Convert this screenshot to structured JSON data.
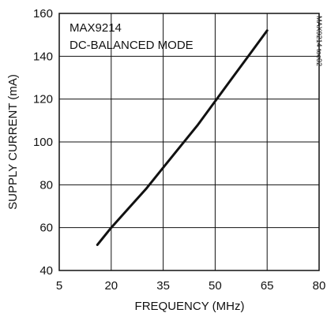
{
  "chart_data": {
    "type": "line",
    "title": "",
    "annotations": [
      "MAX9214",
      "DC-BALANCED MODE"
    ],
    "side_code": "MAX9214 toc02",
    "xlabel": "FREQUENCY (MHz)",
    "ylabel": "SUPPLY CURRENT (mA)",
    "xlim": [
      5,
      80
    ],
    "ylim": [
      40,
      160
    ],
    "xticks": [
      5,
      20,
      35,
      50,
      65,
      80
    ],
    "yticks": [
      40,
      60,
      80,
      100,
      120,
      140,
      160
    ],
    "grid": true,
    "series": [
      {
        "x": [
          16,
          20,
          25,
          30,
          35,
          40,
          45,
          50,
          55,
          60,
          65
        ],
        "y": [
          52,
          60,
          69,
          78,
          88,
          98,
          108,
          119,
          130,
          141,
          152
        ]
      }
    ],
    "colors": {
      "line": "#111111",
      "grid": "#111111",
      "background": "#ffffff"
    }
  }
}
